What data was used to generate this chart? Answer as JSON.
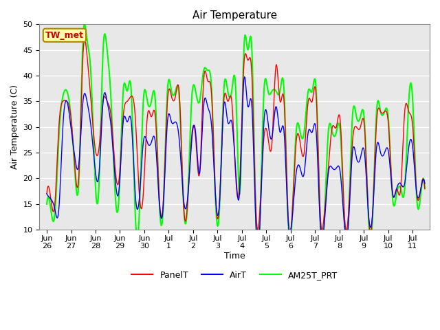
{
  "title": "Air Temperature",
  "xlabel": "Time",
  "ylabel": "Air Temperature (C)",
  "ylim": [
    10,
    50
  ],
  "background_color": "#e8e8e8",
  "grid_color": "white",
  "annotation_text": "TW_met",
  "annotation_bg": "#ffffaa",
  "annotation_border": "#aa8800",
  "annotation_text_color": "#cc0000",
  "tick_labels": [
    "Jun\n26",
    "Jun\n27",
    "Jun\n28",
    "Jun\n29",
    "Jun\n30",
    "Jul\n1",
    "Jul\n2",
    "Jul\n3",
    "Jul\n4",
    "Jul\n5",
    "Jul\n6",
    "Jul\n7",
    "Jul\n8",
    "Jul\n9",
    "Jul\n10",
    "Jul\n11"
  ],
  "panel_t": [
    17,
    16,
    15,
    30,
    35,
    35,
    32,
    22,
    21,
    44,
    44,
    35,
    26,
    26,
    35,
    35,
    32,
    22,
    20,
    32,
    35,
    36,
    32,
    17,
    17,
    32,
    32,
    32,
    16,
    16,
    35,
    36,
    36,
    36,
    15,
    15,
    28,
    28,
    21,
    39,
    39,
    36,
    16,
    16,
    35,
    35,
    35,
    20,
    20,
    42,
    43,
    40,
    14,
    14,
    28,
    28,
    27,
    42,
    35,
    35,
    13,
    13,
    27,
    27,
    25,
    35,
    35,
    36,
    13,
    13,
    22,
    30,
    30,
    31,
    13,
    13,
    27,
    30,
    30,
    30,
    13,
    13,
    31,
    33,
    33,
    30,
    17,
    18,
    18,
    33,
    33,
    30,
    17,
    18,
    18
  ],
  "air_t": [
    17,
    16,
    14,
    14,
    30,
    35,
    30,
    24,
    23,
    35,
    35,
    30,
    22,
    21,
    35,
    35,
    30,
    20,
    18,
    31,
    31,
    31,
    17,
    16,
    27,
    27,
    27,
    27,
    15,
    15,
    31,
    31,
    31,
    27,
    16,
    16,
    27,
    29,
    21,
    34,
    34,
    30,
    16,
    16,
    34,
    31,
    31,
    21,
    18,
    39,
    34,
    34,
    11,
    11,
    31,
    31,
    28,
    34,
    29,
    29,
    12,
    12,
    21,
    22,
    21,
    29,
    29,
    29,
    11,
    11,
    21,
    22,
    22,
    21,
    11,
    11,
    25,
    24,
    24,
    25,
    13,
    13,
    26,
    25,
    25,
    25,
    17,
    18,
    19,
    19,
    26,
    26,
    17,
    18,
    19
  ],
  "am25_t": [
    15,
    14,
    13,
    28,
    36,
    37,
    32,
    21,
    20,
    47,
    47,
    40,
    20,
    19,
    45,
    45,
    35,
    17,
    17,
    37,
    37,
    37,
    13,
    13,
    35,
    35,
    35,
    35,
    15,
    15,
    37,
    37,
    37,
    35,
    15,
    15,
    35,
    37,
    35,
    41,
    41,
    37,
    15,
    15,
    37,
    37,
    37,
    37,
    17,
    45,
    45,
    45,
    12,
    12,
    37,
    37,
    37,
    37,
    37,
    37,
    12,
    12,
    29,
    29,
    29,
    37,
    37,
    37,
    12,
    12,
    29,
    29,
    29,
    29,
    12,
    12,
    32,
    32,
    32,
    31,
    12,
    12,
    33,
    33,
    33,
    31,
    16,
    17,
    18,
    18,
    35,
    35,
    16,
    17,
    18
  ],
  "n_points_per_day": 6
}
